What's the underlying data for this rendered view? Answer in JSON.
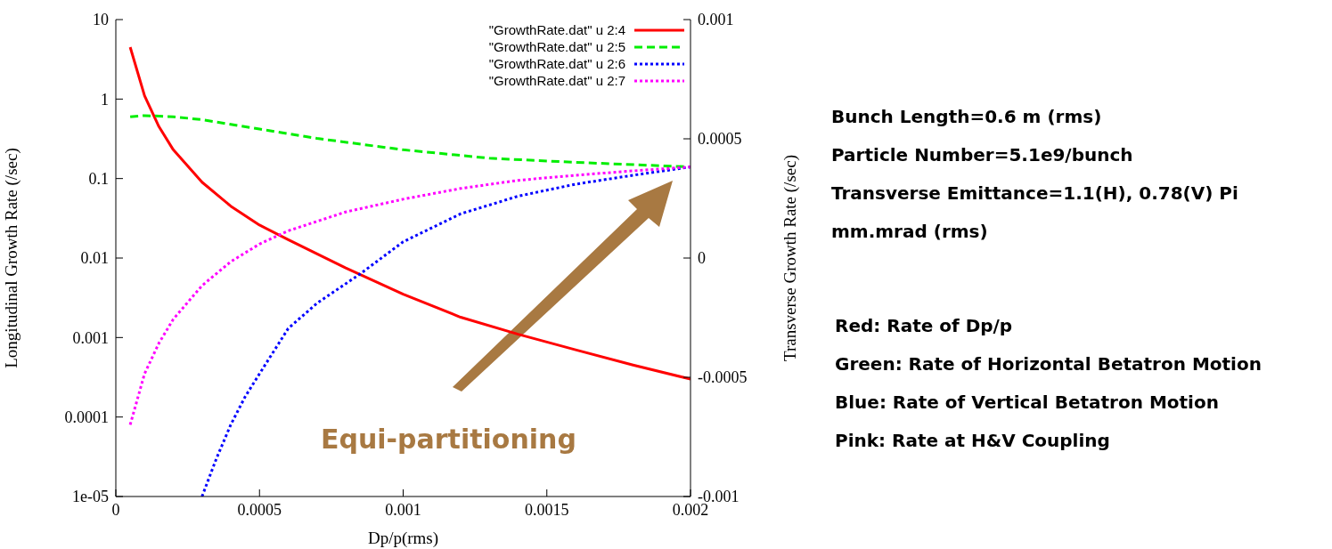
{
  "chart_data": {
    "type": "line",
    "xlabel": "Dp/p(rms)",
    "ylabel": "Longitudinal Growth Rate (/sec)",
    "y2label": "Transverse Growth Rate (/sec)",
    "xlim": [
      0,
      0.002
    ],
    "xticks": [
      0,
      0.0005,
      0.001,
      0.0015,
      0.002
    ],
    "ylim": [
      1e-05,
      10
    ],
    "yticks": [
      {
        "value": 1e-05,
        "label": "1e-05"
      },
      0.0001,
      0.001,
      0.01,
      0.1,
      1,
      10
    ],
    "y2lim": [
      -0.001,
      0.001
    ],
    "y2ticks": [
      -0.001,
      -0.0005,
      0,
      0.0005,
      0.001
    ],
    "log": "y",
    "grid": false,
    "legend": "top right",
    "series": [
      {
        "name": "\"GrowthRate.dat\" u 2:4",
        "color": "#ff0000",
        "line_style": "solid",
        "x": [
          5e-05,
          0.0001,
          0.00015,
          0.0002,
          0.0003,
          0.0004,
          0.0005,
          0.0006,
          0.0008,
          0.001,
          0.0012,
          0.0014,
          0.0016,
          0.0018,
          0.002
        ],
        "values": [
          4.5,
          1.1,
          0.45,
          0.23,
          0.09,
          0.045,
          0.026,
          0.017,
          0.0075,
          0.0035,
          0.0018,
          0.0011,
          0.0007,
          0.00045,
          0.0003
        ]
      },
      {
        "name": "\"GrowthRate.dat\" u 2:5",
        "color": "#00ee00",
        "line_style": "dashed",
        "x": [
          5e-05,
          0.0001,
          0.0002,
          0.0003,
          0.0005,
          0.0007,
          0.001,
          0.0013,
          0.0016,
          0.002
        ],
        "values": [
          0.6,
          0.62,
          0.6,
          0.55,
          0.42,
          0.32,
          0.23,
          0.18,
          0.16,
          0.14
        ]
      },
      {
        "name": "\"GrowthRate.dat\" u 2:6",
        "color": "#0000ff",
        "line_style": "dotted",
        "x": [
          0.0003,
          0.00035,
          0.0004,
          0.00045,
          0.0005,
          0.0006,
          0.0007,
          0.00085,
          0.001,
          0.0012,
          0.0014,
          0.0016,
          0.0018,
          0.002
        ],
        "values": [
          1e-05,
          3e-05,
          8e-05,
          0.00018,
          0.00035,
          0.0013,
          0.0027,
          0.0063,
          0.016,
          0.036,
          0.06,
          0.085,
          0.11,
          0.14
        ]
      },
      {
        "name": "\"GrowthRate.dat\" u 2:7",
        "color": "#ff00ff",
        "line_style": "dotted",
        "x": [
          5e-05,
          0.0001,
          0.00015,
          0.0002,
          0.0003,
          0.0004,
          0.0005,
          0.0006,
          0.0008,
          0.001,
          0.0012,
          0.0014,
          0.0016,
          0.0018,
          0.002
        ],
        "values": [
          8e-05,
          0.00035,
          0.00085,
          0.0017,
          0.0045,
          0.009,
          0.015,
          0.022,
          0.038,
          0.055,
          0.075,
          0.095,
          0.11,
          0.125,
          0.14
        ]
      }
    ],
    "annotations": [
      "Bunch Length=0.6 m (rms)",
      "Particle Number=5.1e9/bunch",
      "Transverse Emittance=1.1(H), 0.78(V) Pi mm.mrad (rms)",
      "Red: Rate of Dp/p",
      "Green: Rate of Horizontal Betatron Motion",
      "Blue: Rate of Vertical Betatron Motion",
      "Pink: Rate at H&V Coupling",
      "Equi-partitioning"
    ]
  }
}
